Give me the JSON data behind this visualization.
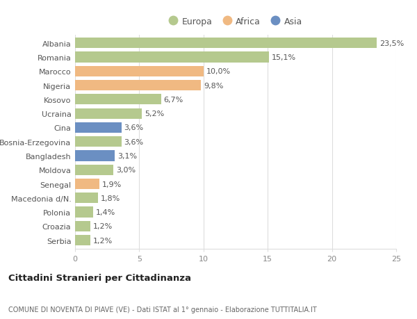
{
  "categories": [
    "Albania",
    "Romania",
    "Marocco",
    "Nigeria",
    "Kosovo",
    "Ucraina",
    "Cina",
    "Bosnia-Erzegovina",
    "Bangladesh",
    "Moldova",
    "Senegal",
    "Macedonia d/N.",
    "Polonia",
    "Croazia",
    "Serbia"
  ],
  "values": [
    23.5,
    15.1,
    10.0,
    9.8,
    6.7,
    5.2,
    3.6,
    3.6,
    3.1,
    3.0,
    1.9,
    1.8,
    1.4,
    1.2,
    1.2
  ],
  "labels": [
    "23,5%",
    "15,1%",
    "10,0%",
    "9,8%",
    "6,7%",
    "5,2%",
    "3,6%",
    "3,6%",
    "3,1%",
    "3,0%",
    "1,9%",
    "1,8%",
    "1,4%",
    "1,2%",
    "1,2%"
  ],
  "continents": [
    "Europa",
    "Europa",
    "Africa",
    "Africa",
    "Europa",
    "Europa",
    "Asia",
    "Europa",
    "Asia",
    "Europa",
    "Africa",
    "Europa",
    "Europa",
    "Europa",
    "Europa"
  ],
  "colors": {
    "Europa": "#b5c98e",
    "Africa": "#f0b982",
    "Asia": "#6b8fc2"
  },
  "legend": [
    "Europa",
    "Africa",
    "Asia"
  ],
  "legend_colors": [
    "#b5c98e",
    "#f0b982",
    "#6b8fc2"
  ],
  "title": "Cittadini Stranieri per Cittadinanza",
  "subtitle": "COMUNE DI NOVENTA DI PIAVE (VE) - Dati ISTAT al 1° gennaio - Elaborazione TUTTITALIA.IT",
  "xlim": [
    0,
    25
  ],
  "xticks": [
    0,
    5,
    10,
    15,
    20,
    25
  ],
  "bg_color": "#ffffff",
  "grid_color": "#dddddd",
  "bar_height": 0.75
}
